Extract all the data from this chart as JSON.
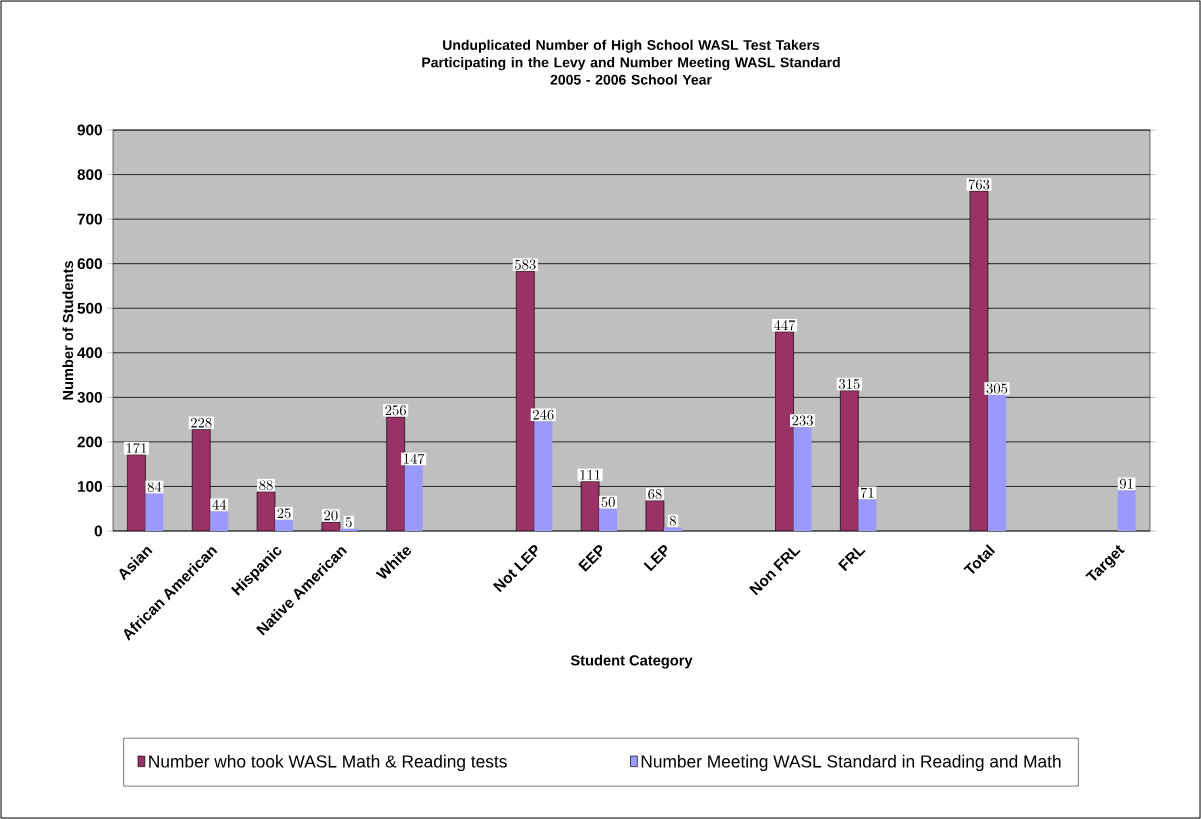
{
  "chart_data": {
    "type": "bar",
    "title": "Unduplicated Number of High School WASL Test Takers Participating in the Levy and Number Meeting WASL Standard",
    "subtitle": "2005 - 2006 School Year",
    "xlabel": "Student Category",
    "ylabel": "Number of Students",
    "categories": [
      "Asian",
      "African American",
      "Hispanic",
      "Native American",
      "White",
      null,
      "Not LEP",
      "EEP",
      "LEP",
      null,
      "Non FRL",
      "FRL",
      null,
      "Total",
      null,
      "Target"
    ],
    "series": [
      {
        "name": "Number who took WASL Math & Reading tests",
        "color": "#993366",
        "values": [
          171,
          228,
          88,
          20,
          256,
          null,
          583,
          111,
          68,
          null,
          447,
          315,
          null,
          763,
          null,
          null
        ]
      },
      {
        "name": "Number Meeting WASL Standard in Reading and Math",
        "color": "#9999ff",
        "values": [
          84,
          44,
          25,
          5,
          147,
          null,
          246,
          50,
          8,
          null,
          233,
          71,
          null,
          305,
          null,
          91
        ]
      }
    ],
    "ylim": [
      0,
      900
    ],
    "yticks": [
      0,
      100,
      200,
      300,
      400,
      500,
      600,
      700,
      800,
      900
    ],
    "grid": "y",
    "legend": "bottom",
    "data_labels": true
  }
}
